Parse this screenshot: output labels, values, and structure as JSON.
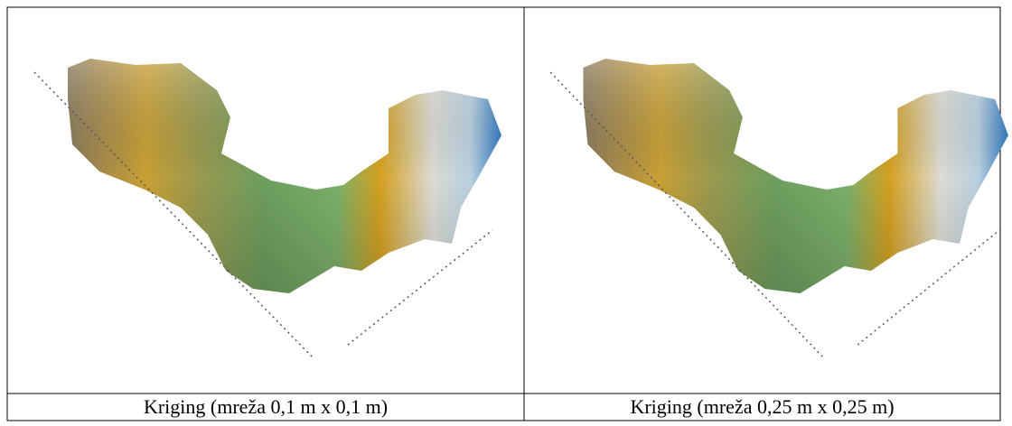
{
  "table": {
    "rows": [
      [
        "Kriging (mreža 0,1 m x 0,1 m)",
        "Kriging (mreža 0,25 m x 0,25 m)"
      ]
    ]
  }
}
